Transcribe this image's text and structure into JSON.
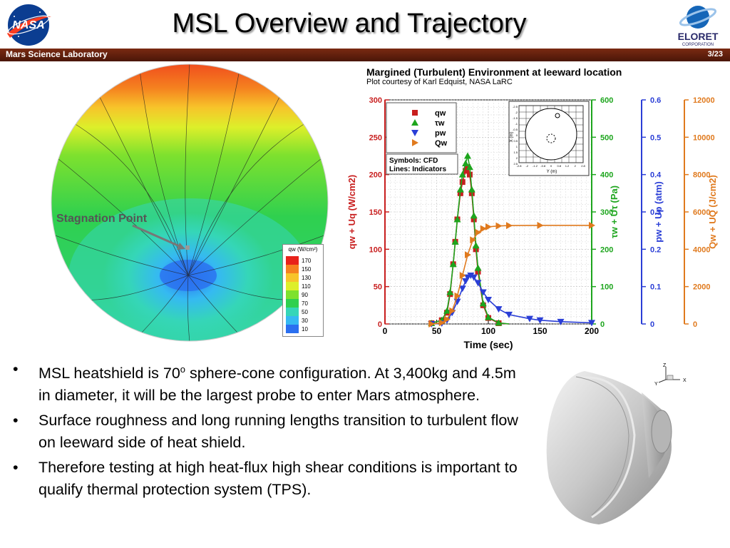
{
  "slide": {
    "title": "MSL Overview and Trajectory",
    "bar_left": "Mars Science Laboratory",
    "page": "3/23",
    "nasa_logo_text": "NASA",
    "eloret_logo_text": "ELORET",
    "eloret_sub": "CORPORATION"
  },
  "heatmap": {
    "annotation": "Stagnation Point",
    "legend_title": "qw (W/cm²)",
    "legend_levels": [
      "170",
      "150",
      "130",
      "110",
      "90",
      "70",
      "50",
      "30",
      "10"
    ],
    "legend_colors": [
      "#e8221a",
      "#f5811f",
      "#f7c42a",
      "#ddef2a",
      "#7ee12e",
      "#2fd04f",
      "#35d6b8",
      "#35b9f2",
      "#2a6ff0"
    ]
  },
  "chart_header": {
    "title": "Margined (Turbulent) Environment at leeward location",
    "subtitle": "Plot courtesy of Karl Edquist, NASA LaRC"
  },
  "chart_data": {
    "type": "line",
    "xlabel": "Time (sec)",
    "xlim": [
      0,
      200
    ],
    "xticks": [
      "0",
      "50",
      "100",
      "150",
      "200"
    ],
    "axes": [
      {
        "label": "qw + Uq (W/cm2)",
        "color": "#c81e1e",
        "ticks": [
          "0",
          "50",
          "100",
          "150",
          "200",
          "250",
          "300"
        ],
        "lim": [
          0,
          300
        ]
      },
      {
        "label": "τw + Uτ (Pa)",
        "color": "#1da51d",
        "ticks": [
          "0",
          "100",
          "200",
          "300",
          "400",
          "500",
          "600"
        ],
        "lim": [
          0,
          600
        ]
      },
      {
        "label": "pw + Up (atm)",
        "color": "#2a3ed6",
        "ticks": [
          "0",
          "0.1",
          "0.2",
          "0.3",
          "0.4",
          "0.5",
          "0.6"
        ],
        "lim": [
          0,
          0.6
        ]
      },
      {
        "label": "Qw + UQ (J/cm2)",
        "color": "#e07a1e",
        "ticks": [
          "0",
          "2000",
          "4000",
          "6000",
          "8000",
          "10000",
          "12000"
        ],
        "lim": [
          0,
          12000
        ]
      }
    ],
    "legend": {
      "entries": [
        {
          "name": "qw",
          "color": "#c81e1e",
          "marker": "square"
        },
        {
          "name": "τw",
          "color": "#1da51d",
          "marker": "triangle-up"
        },
        {
          "name": "pw",
          "color": "#2a3ed6",
          "marker": "triangle-down"
        },
        {
          "name": "Qw",
          "color": "#e07a1e",
          "marker": "triangle-right"
        }
      ],
      "note1": "Symbols: CFD",
      "note2": "Lines: Indicators"
    },
    "series": [
      {
        "name": "qw",
        "axis": 0,
        "x": [
          45,
          55,
          60,
          63,
          66,
          68,
          70,
          73,
          75,
          78,
          80,
          82,
          84,
          86,
          88,
          90,
          95,
          100,
          110,
          120
        ],
        "values": [
          1,
          5,
          15,
          40,
          80,
          110,
          140,
          175,
          190,
          205,
          210,
          200,
          175,
          140,
          100,
          70,
          25,
          8,
          1,
          0
        ]
      },
      {
        "name": "τw",
        "axis": 1,
        "x": [
          45,
          55,
          60,
          63,
          66,
          68,
          70,
          73,
          75,
          78,
          80,
          82,
          84,
          86,
          88,
          90,
          95,
          100,
          110,
          120
        ],
        "values": [
          2,
          10,
          35,
          85,
          160,
          220,
          280,
          360,
          400,
          430,
          450,
          420,
          360,
          290,
          210,
          150,
          55,
          18,
          3,
          0
        ]
      },
      {
        "name": "pw",
        "axis": 2,
        "x": [
          45,
          55,
          60,
          65,
          70,
          75,
          78,
          80,
          83,
          86,
          90,
          95,
          100,
          110,
          120,
          140,
          150,
          170,
          200
        ],
        "values": [
          0,
          0.002,
          0.01,
          0.03,
          0.06,
          0.095,
          0.115,
          0.125,
          0.13,
          0.125,
          0.11,
          0.085,
          0.065,
          0.04,
          0.025,
          0.014,
          0.01,
          0.006,
          0.003
        ]
      },
      {
        "name": "Qw",
        "axis": 3,
        "x": [
          45,
          55,
          60,
          65,
          70,
          75,
          80,
          85,
          90,
          95,
          100,
          110,
          120,
          150,
          200
        ],
        "values": [
          0,
          60,
          250,
          700,
          1500,
          2600,
          3700,
          4500,
          4900,
          5100,
          5200,
          5250,
          5270,
          5280,
          5280
        ]
      }
    ],
    "inset": {
      "xlabel": "Y (m)",
      "ylabel": "X (m)",
      "xticks": [
        "-2.8",
        "-2",
        "-1.2",
        "-0.8",
        "0",
        "0.8",
        "1.2",
        "2",
        "2.8"
      ],
      "yticks": [
        "-2.5",
        "-2",
        "-1.5",
        "-1",
        "-0.5",
        "0",
        "0.5",
        "1",
        "1.5",
        "2",
        "2.5"
      ]
    }
  },
  "bullets": [
    {
      "pre": "MSL heatshield is 70",
      "sup": "o",
      "post": " sphere-cone configuration. At 3,400kg and 4.5m in diameter, it will be the largest probe to enter Mars atmosphere."
    },
    {
      "pre": "Surface roughness and long running lengths transition to turbulent flow on leeward side of heat shield.",
      "sup": "",
      "post": ""
    },
    {
      "pre": "Therefore testing at high heat-flux high shear conditions is important to qualify thermal protection system (TPS).",
      "sup": "",
      "post": ""
    }
  ],
  "axes_glyph": {
    "z": "Z",
    "y": "Y",
    "x": "X"
  }
}
